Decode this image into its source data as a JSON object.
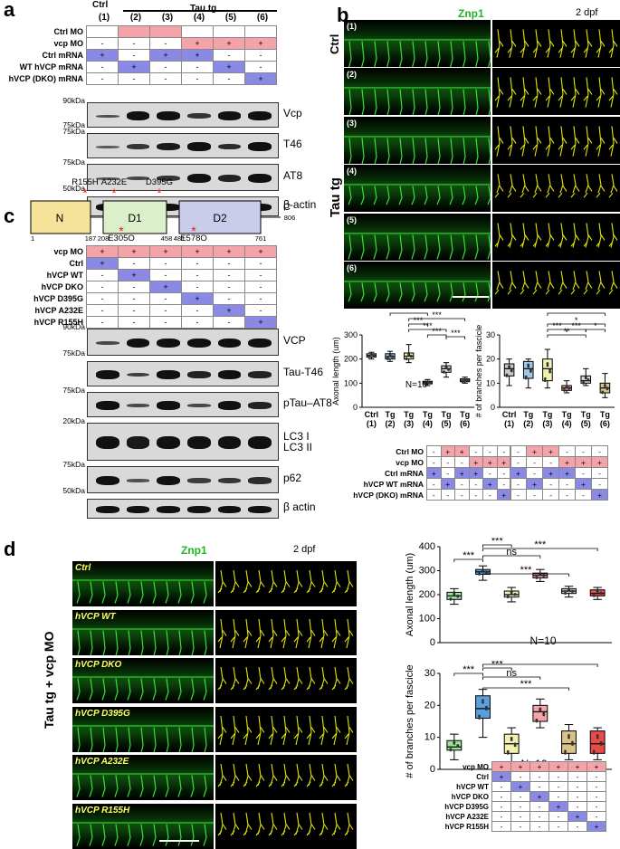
{
  "panel_a": {
    "label": "a",
    "ctrl_header": "Ctrl",
    "tg_header": "Tau tg",
    "lanes": [
      "(1)",
      "(2)",
      "(3)",
      "(4)",
      "(5)",
      "(6)"
    ],
    "rows": [
      {
        "label": "Ctrl MO",
        "vals": [
          "",
          "",
          "",
          "",
          "",
          ""
        ],
        "color": "pink"
      },
      {
        "label": "vcp MO",
        "vals": [
          "-",
          "-",
          "-",
          "+",
          "+",
          "+"
        ],
        "color": "pink"
      },
      {
        "label": "Ctrl mRNA",
        "vals": [
          "+",
          "-",
          "+",
          "+",
          "-",
          "-"
        ],
        "color": "blue"
      },
      {
        "label": "WT hVCP mRNA",
        "vals": [
          "-",
          "+",
          "-",
          "-",
          "+",
          "-"
        ],
        "color": "blue"
      },
      {
        "label": "hVCP (DKO) mRNA",
        "vals": [
          "-",
          "-",
          "-",
          "-",
          "-",
          "+"
        ],
        "color": "blue"
      }
    ],
    "blots": [
      {
        "name": "Vcp",
        "kda_top": "90kDa",
        "kda_bottom": "75kDa"
      },
      {
        "name": "T46",
        "kda_top": "75kDa",
        "kda_bottom": ""
      },
      {
        "name": "AT8",
        "kda_top": "75kDa",
        "kda_bottom": "50kDa"
      },
      {
        "name": "β-actin",
        "kda_top": "",
        "kda_bottom": ""
      }
    ]
  },
  "panel_b": {
    "label": "b",
    "stain": "Znp1",
    "age": "2 dpf",
    "ctrl_side": "Ctrl",
    "tg_side": "Tau tg",
    "images": [
      "(1)",
      "(2)",
      "(3)",
      "(4)",
      "(5)",
      "(6)"
    ],
    "axonal_chart": {
      "ylabel": "Axonal length (um)",
      "n_label": "N=10",
      "xticks": [
        "Ctrl (1)",
        "Tg (2)",
        "Tg (3)",
        "Tg (4)",
        "Tg (5)",
        "Tg (6)"
      ],
      "sig": [
        "***",
        "***",
        "***",
        "***",
        "***",
        "***"
      ]
    },
    "branch_chart": {
      "ylabel": "# of branches per fascicle",
      "xticks": [
        "Ctrl (1)",
        "Tg (2)",
        "Tg (3)",
        "Tg (4)",
        "Tg (5)",
        "Tg (6)"
      ],
      "sig": [
        "***",
        "***",
        "**",
        "*",
        "*",
        "***"
      ]
    },
    "table_rows": [
      {
        "label": "Ctrl MO",
        "vals": [
          "-",
          "+",
          "+",
          "-",
          "-",
          "-"
        ]
      },
      {
        "label": "vcp MO",
        "vals": [
          "-",
          "-",
          "-",
          "+",
          "+",
          "+"
        ]
      },
      {
        "label": "Ctrl mRNA",
        "vals": [
          "+",
          "-",
          "+",
          "+",
          "-",
          "-"
        ]
      },
      {
        "label": "hVCP WT mRNA",
        "vals": [
          "-",
          "+",
          "-",
          "-",
          "+",
          "-"
        ]
      },
      {
        "label": "hVCP (DKO) mRNA",
        "vals": [
          "-",
          "-",
          "-",
          "-",
          "-",
          "+"
        ]
      }
    ]
  },
  "panel_c": {
    "label": "c",
    "domains": [
      "N",
      "D1",
      "D2"
    ],
    "c_end": "C",
    "positions": [
      "1",
      "187",
      "208",
      "458",
      "481",
      "761",
      "806"
    ],
    "mutations": [
      "R155H",
      "A232E",
      "D395G",
      "E305Q",
      "E578Q"
    ],
    "rows": [
      {
        "label": "vcp MO",
        "vals": [
          "+",
          "+",
          "+",
          "+",
          "+",
          "+"
        ]
      },
      {
        "label": "Ctrl",
        "vals": [
          "+",
          "-",
          "-",
          "-",
          "-",
          "-"
        ]
      },
      {
        "label": "hVCP WT",
        "vals": [
          "-",
          "+",
          "-",
          "-",
          "-",
          "-"
        ]
      },
      {
        "label": "hVCP DKO",
        "vals": [
          "-",
          "-",
          "+",
          "-",
          "-",
          "-"
        ]
      },
      {
        "label": "hVCP D395G",
        "vals": [
          "-",
          "-",
          "-",
          "+",
          "-",
          "-"
        ]
      },
      {
        "label": "hVCP A232E",
        "vals": [
          "-",
          "-",
          "-",
          "-",
          "+",
          "-"
        ]
      },
      {
        "label": "hVCP R155H",
        "vals": [
          "-",
          "-",
          "-",
          "-",
          "-",
          "+"
        ]
      }
    ],
    "blots": [
      {
        "name": "VCP",
        "kda_top": "90kDa",
        "kda_bottom": "75kDa"
      },
      {
        "name": "Tau-T46",
        "kda_top": "",
        "kda_bottom": ""
      },
      {
        "name": "pTau–AT8",
        "kda_top": "75kDa",
        "kda_bottom": ""
      },
      {
        "name": "LC3 I\nLC3 II",
        "kda_top": "20kDa",
        "kda_bottom": ""
      },
      {
        "name": "p62",
        "kda_top": "75kDa",
        "kda_bottom": "50kDa"
      },
      {
        "name": "β actin",
        "kda_top": "",
        "kda_bottom": ""
      }
    ]
  },
  "panel_d": {
    "label": "d",
    "stain": "Znp1",
    "age": "2 dpf",
    "side_label": "Tau tg + vcp MO",
    "images": [
      "Ctrl",
      "hVCP WT",
      "hVCP DKO",
      "hVCP D395G",
      "hVCP A232E",
      "hVCP R155H"
    ],
    "axonal_chart": {
      "ylabel": "Axonal length (um)",
      "n_label": "N=10",
      "sig": [
        "***",
        "***",
        "ns",
        "***",
        "***"
      ]
    },
    "branch_chart": {
      "ylabel": "# of branches per fascicle",
      "n_label": "N=10",
      "sig": [
        "***",
        "***",
        "ns",
        "***",
        "***"
      ]
    },
    "table_rows": [
      {
        "label": "vcp MO",
        "vals": [
          "+",
          "+",
          "+",
          "+",
          "+",
          "+"
        ]
      },
      {
        "label": "Ctrl",
        "vals": [
          "+",
          "-",
          "-",
          "-",
          "-",
          "-"
        ]
      },
      {
        "label": "hVCP WT",
        "vals": [
          "-",
          "+",
          "-",
          "-",
          "-",
          "-"
        ]
      },
      {
        "label": "hVCP DKO",
        "vals": [
          "-",
          "-",
          "+",
          "-",
          "-",
          "-"
        ]
      },
      {
        "label": "hVCP D395G",
        "vals": [
          "-",
          "-",
          "-",
          "+",
          "-",
          "-"
        ]
      },
      {
        "label": "hVCP A232E",
        "vals": [
          "-",
          "-",
          "-",
          "-",
          "+",
          "-"
        ]
      },
      {
        "label": "hVCP R155H",
        "vals": [
          "-",
          "-",
          "-",
          "-",
          "-",
          "+"
        ]
      }
    ]
  },
  "chart_data": [
    {
      "type": "box",
      "panel": "b-left",
      "ylabel": "Axonal length (um)",
      "ylim": [
        0,
        300
      ],
      "yticks": [
        0,
        100,
        200,
        300
      ],
      "categories": [
        "Ctrl (1)",
        "Tg (2)",
        "Tg (3)",
        "Tg (4)",
        "Tg (5)",
        "Tg (6)"
      ],
      "medians": [
        215,
        210,
        212,
        102,
        160,
        112
      ],
      "q1": [
        208,
        200,
        200,
        97,
        145,
        106
      ],
      "q3": [
        222,
        222,
        225,
        108,
        172,
        118
      ],
      "min": [
        200,
        190,
        185,
        90,
        125,
        100
      ],
      "max": [
        228,
        232,
        260,
        115,
        185,
        125
      ],
      "colors": [
        "#c8c8c8",
        "#9ec6e8",
        "#f4f0b0",
        "#f4a3a8",
        "#d8d8d8",
        "#d8c48a"
      ],
      "n_label": "N=10"
    },
    {
      "type": "box",
      "panel": "b-right",
      "ylabel": "# of branches per fascicle",
      "ylim": [
        0,
        30
      ],
      "yticks": [
        0,
        10,
        20,
        30
      ],
      "categories": [
        "Ctrl (1)",
        "Tg (2)",
        "Tg (3)",
        "Tg (4)",
        "Tg (5)",
        "Tg (6)"
      ],
      "medians": [
        16,
        16,
        16,
        8,
        11,
        8
      ],
      "q1": [
        13,
        12,
        11,
        7,
        10,
        6
      ],
      "q3": [
        18,
        19,
        20,
        9,
        13,
        10
      ],
      "min": [
        9,
        8,
        8,
        6,
        9,
        4
      ],
      "max": [
        20,
        20,
        24,
        11,
        16,
        14
      ],
      "colors": [
        "#c8c8c8",
        "#9ec6e8",
        "#f4f0b0",
        "#f4a3a8",
        "#d8d8d8",
        "#d8c48a"
      ]
    },
    {
      "type": "box",
      "panel": "d-top",
      "ylabel": "Axonal length (um)",
      "ylim": [
        0,
        400
      ],
      "yticks": [
        0,
        100,
        200,
        300,
        400
      ],
      "categories": [
        "Ctrl",
        "hVCP WT",
        "hVCP DKO",
        "hVCP D395G",
        "hVCP A232E",
        "hVCP R155H"
      ],
      "medians": [
        195,
        295,
        200,
        280,
        215,
        205
      ],
      "q1": [
        180,
        285,
        190,
        270,
        205,
        195
      ],
      "q3": [
        210,
        305,
        215,
        290,
        225,
        220
      ],
      "min": [
        160,
        260,
        170,
        255,
        190,
        180
      ],
      "max": [
        225,
        320,
        230,
        305,
        235,
        230
      ],
      "colors": [
        "#9be39b",
        "#5aa0e0",
        "#f4f0b0",
        "#f4a3a8",
        "#c4c4c4",
        "#e84a4a"
      ],
      "n_label": "N=10"
    },
    {
      "type": "box",
      "panel": "d-bottom",
      "ylabel": "# of branches per fascicle",
      "ylim": [
        0,
        30
      ],
      "yticks": [
        0,
        10,
        20,
        30
      ],
      "categories": [
        "Ctrl",
        "hVCP WT",
        "hVCP DKO",
        "hVCP D395G",
        "hVCP A232E",
        "hVCP R155H"
      ],
      "medians": [
        7,
        19,
        8,
        18,
        8,
        8
      ],
      "q1": [
        6,
        16,
        5,
        15,
        5,
        5
      ],
      "q3": [
        9,
        23,
        11,
        20,
        12,
        12
      ],
      "min": [
        3,
        10,
        2,
        13,
        3,
        3
      ],
      "max": [
        11,
        25,
        13,
        22,
        14,
        13
      ],
      "colors": [
        "#9be39b",
        "#5aa0e0",
        "#f4f0b0",
        "#f4a3a8",
        "#d8c48a",
        "#e84a4a"
      ],
      "n_label": "N=10"
    }
  ]
}
